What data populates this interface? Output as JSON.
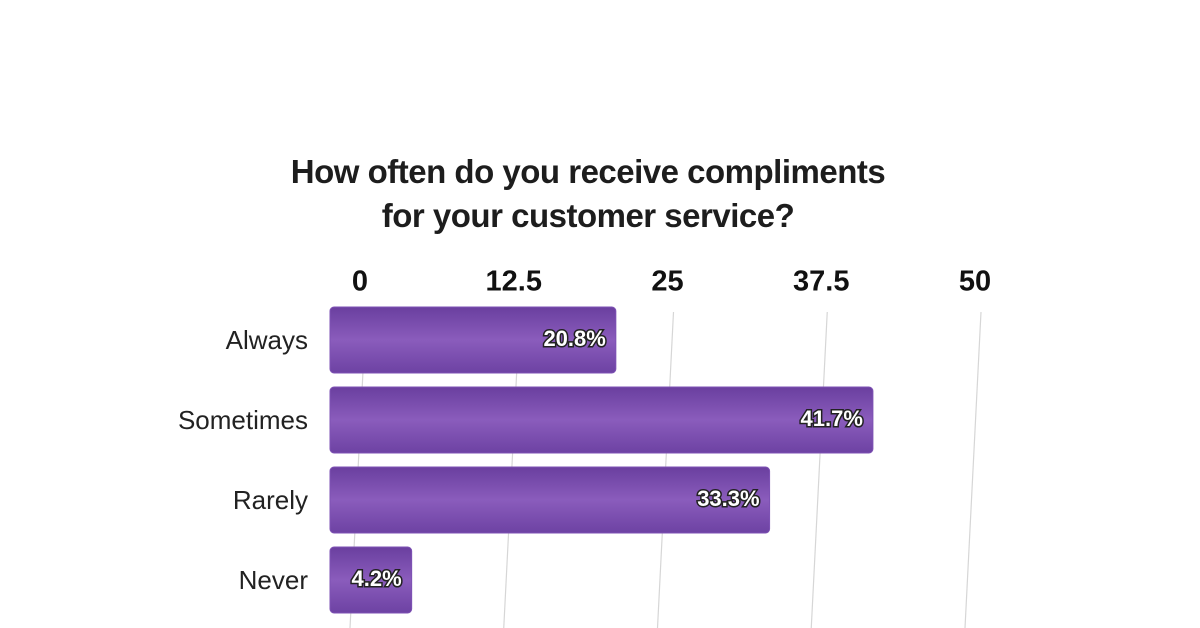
{
  "chart_data": {
    "type": "bar",
    "orientation": "horizontal",
    "title": "How often do you receive compliments for your customer service?",
    "categories": [
      "Always",
      "Sometimes",
      "Rarely",
      "Never"
    ],
    "values": [
      20.8,
      41.7,
      33.3,
      4.2
    ],
    "value_labels": [
      "20.8%",
      "41.7%",
      "33.3%",
      "4.2%"
    ],
    "color": "#7e52b4",
    "xlim": [
      0,
      50
    ],
    "xticks": [
      0,
      12.5,
      25,
      37.5,
      50
    ],
    "grid": true
  }
}
